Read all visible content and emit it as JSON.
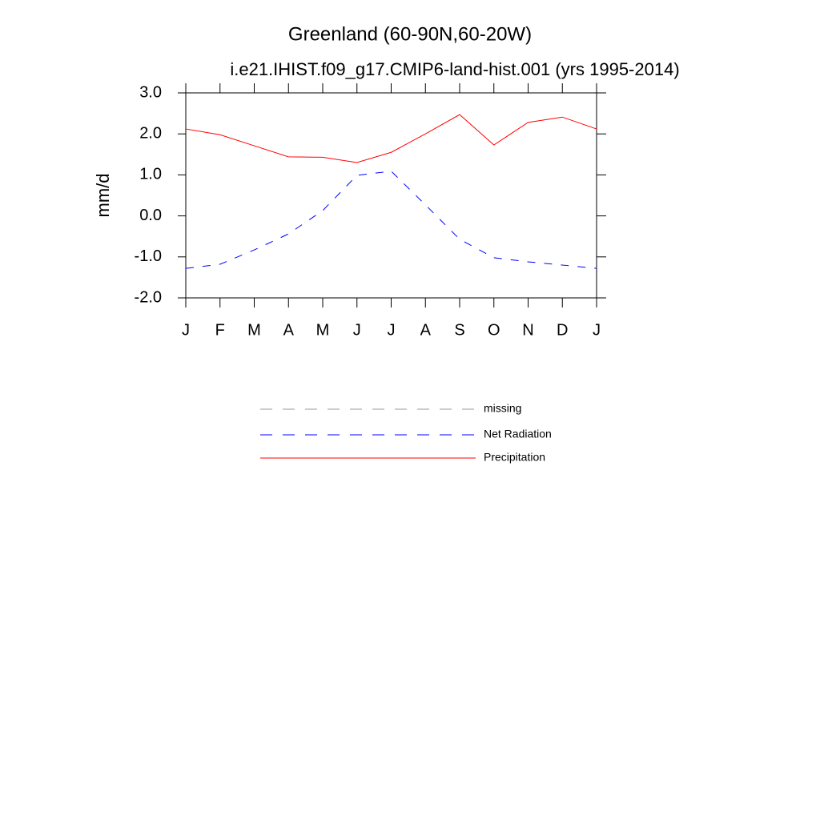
{
  "chart_data": {
    "type": "line",
    "title": "Greenland (60-90N,60-20W)",
    "subtitle": "i.e21.IHIST.f09_g17.CMIP6-land-hist.001 (yrs 1995-2014)",
    "y_label": "mm/d",
    "categories": [
      "J",
      "F",
      "M",
      "A",
      "M",
      "J",
      "J",
      "A",
      "S",
      "O",
      "N",
      "D",
      "J"
    ],
    "series": [
      {
        "name": "missing",
        "color": "#999999",
        "dash": true,
        "values": [
          null,
          null,
          null,
          null,
          null,
          null,
          null,
          null,
          null,
          null,
          null,
          null,
          null
        ]
      },
      {
        "name": "Net Radiation",
        "color": "#0000ff",
        "dash": true,
        "values": [
          -1.28,
          -1.18,
          -0.83,
          -0.44,
          0.13,
          0.99,
          1.09,
          0.27,
          -0.57,
          -1.02,
          -1.12,
          -1.2,
          -1.28
        ]
      },
      {
        "name": "Precipitation",
        "color": "#ff0000",
        "dash": false,
        "values": [
          2.12,
          1.98,
          1.71,
          1.44,
          1.43,
          1.3,
          1.55,
          2.0,
          2.47,
          1.73,
          2.28,
          2.41,
          2.12
        ]
      }
    ],
    "ylim": [
      -2,
      3
    ],
    "yticks": [
      {
        "value": -2,
        "label": "-2.0"
      },
      {
        "value": -1,
        "label": "-1.0"
      },
      {
        "value": 0,
        "label": "0.0"
      },
      {
        "value": 1,
        "label": "1.0"
      },
      {
        "value": 2,
        "label": "2.0"
      },
      {
        "value": 3,
        "label": "3.0"
      }
    ]
  }
}
